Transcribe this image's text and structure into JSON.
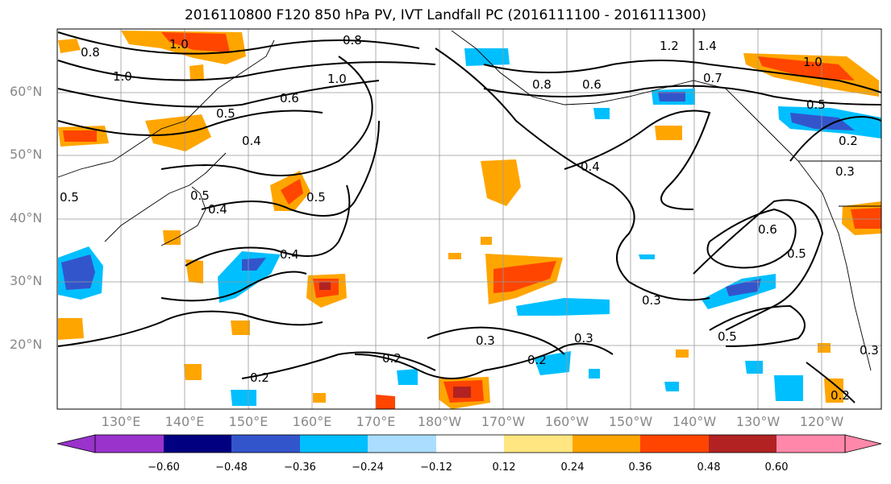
{
  "title": "2016110800 F120 850 hPa PV, IVT Landfall PC (2016111100 - 2016111300)",
  "lat_labels": [
    "60°N",
    "50°N",
    "40°N",
    "30°N",
    "20°N"
  ],
  "lon_labels": [
    "130°E",
    "140°E",
    "150°E",
    "160°E",
    "170°E",
    "180°W",
    "170°W",
    "160°W",
    "150°W",
    "140°W",
    "130°W",
    "120°W"
  ],
  "colorbar": {
    "colors": [
      "#9933cc",
      "#000080",
      "#3355cc",
      "#00bfff",
      "#aaddff",
      "#ffffff",
      "#ffe680",
      "#ffa500",
      "#ff4500",
      "#b22222",
      "#ff88aa"
    ],
    "tick_labels": [
      "−0.60",
      "−0.48",
      "−0.36",
      "−0.24",
      "−0.12",
      "0.12",
      "0.24",
      "0.36",
      "0.48",
      "0.60"
    ]
  },
  "contour_labels": [
    "0.8",
    "1.0",
    "1.0",
    "0.8",
    "1.0",
    "0.6",
    "0.5",
    "0.4",
    "0.5",
    "0.4",
    "0.5",
    "0.4",
    "0.4",
    "0.8",
    "0.6",
    "1.2",
    "1.4",
    "0.7",
    "1.0",
    "0.5",
    "0.2",
    "0.3",
    "0.6",
    "0.5",
    "0.5",
    "0.3",
    "0.3",
    "0.2",
    "0.3",
    "0.5",
    "0.2",
    "0.2",
    "0.3",
    "0.2"
  ]
}
